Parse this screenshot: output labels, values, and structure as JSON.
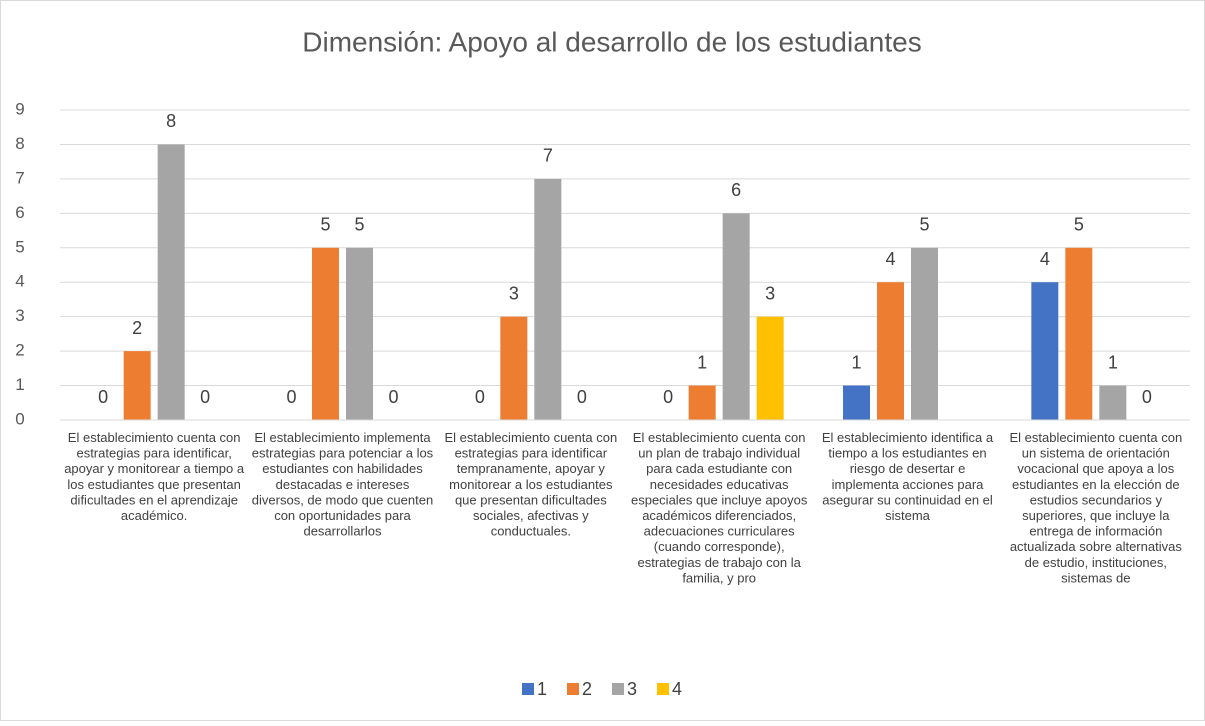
{
  "chart_data": {
    "type": "bar",
    "title": "Dimensión: Apoyo al desarrollo de los estudiantes",
    "categories": [
      "El establecimiento cuenta con estrategias para identificar, apoyar y monitorear a tiempo a los estudiantes que presentan dificultades en el aprendizaje académico.",
      "El establecimiento implementa estrategias para potenciar a los estudiantes con habilidades destacadas e intereses diversos, de modo que cuenten con oportunidades para desarrollarlos",
      "El establecimiento cuenta con estrategias para identificar tempranamente, apoyar y monitorear a los estudiantes que presentan dificultades sociales, afectivas y conductuales.",
      "El establecimiento cuenta con un plan de trabajo individual para cada estudiante con necesidades educativas especiales que incluye apoyos académicos diferenciados, adecuaciones curriculares (cuando corresponde), estrategias de trabajo con la familia, y pro",
      "El establecimiento identifica a tiempo a los estudiantes en riesgo de desertar e implementa acciones para asegurar su continuidad en el sistema",
      "El establecimiento cuenta con un sistema de orientación vocacional que apoya a los estudiantes en la elección de estudios secundarios y superiores, que incluye la entrega de información actualizada sobre alternativas de estudio, instituciones, sistemas de"
    ],
    "series": [
      {
        "name": "1",
        "color": "#4472c4",
        "values": [
          0,
          0,
          0,
          0,
          1,
          4
        ]
      },
      {
        "name": "2",
        "color": "#ed7d31",
        "values": [
          2,
          5,
          3,
          1,
          4,
          5
        ]
      },
      {
        "name": "3",
        "color": "#a5a5a5",
        "values": [
          8,
          5,
          7,
          6,
          5,
          1
        ]
      },
      {
        "name": "4",
        "color": "#ffc000",
        "values": [
          0,
          0,
          0,
          3,
          null,
          0
        ]
      }
    ],
    "ylim": [
      0,
      9
    ],
    "yticks": [
      0,
      1,
      2,
      3,
      4,
      5,
      6,
      7,
      8,
      9
    ],
    "grid": true,
    "legend": "bottom"
  }
}
